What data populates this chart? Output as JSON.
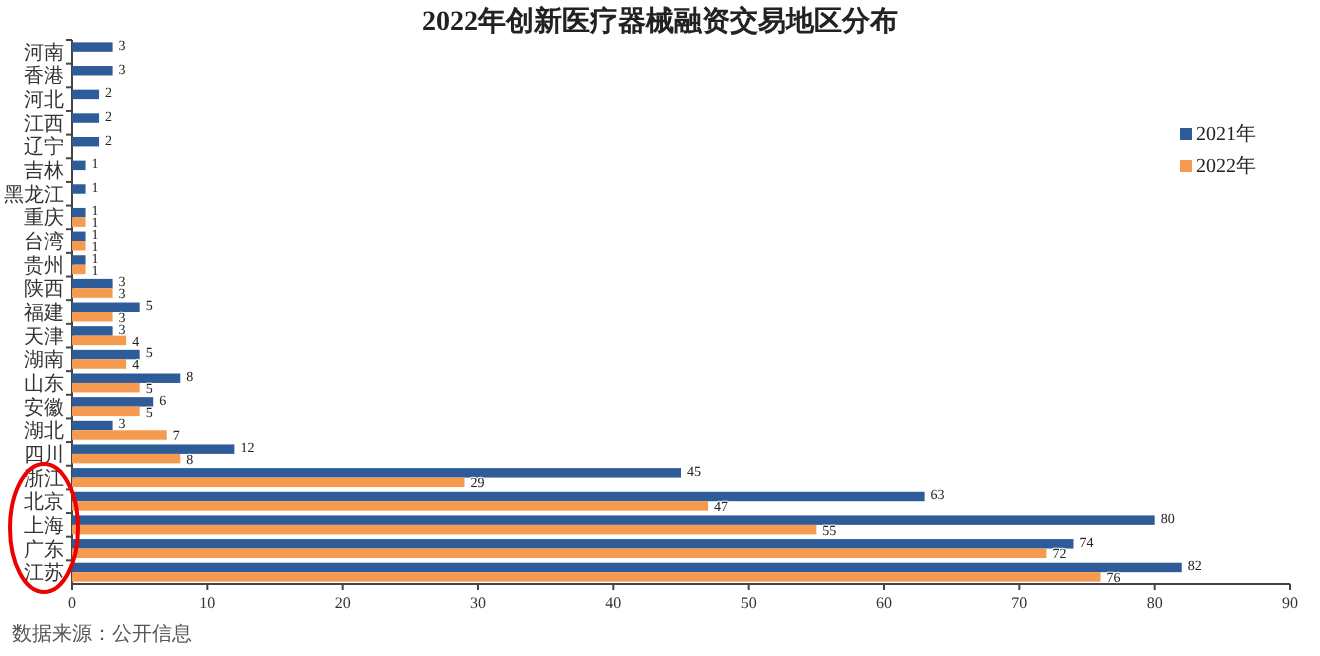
{
  "chart_data": {
    "type": "bar",
    "orientation": "horizontal",
    "title": "2022年创新医疗器械融资交易地区分布",
    "categories": [
      "河南",
      "香港",
      "河北",
      "江西",
      "辽宁",
      "吉林",
      "黑龙江",
      "重庆",
      "台湾",
      "贵州",
      "陕西",
      "福建",
      "天津",
      "湖南",
      "山东",
      "安徽",
      "湖北",
      "四川",
      "浙江",
      "北京",
      "上海",
      "广东",
      "江苏"
    ],
    "series": [
      {
        "name": "2021年",
        "color": "#2e5c99",
        "values": [
          3,
          3,
          2,
          2,
          2,
          1,
          1,
          1,
          1,
          1,
          3,
          5,
          3,
          5,
          8,
          6,
          3,
          12,
          45,
          63,
          80,
          74,
          82
        ]
      },
      {
        "name": "2022年",
        "color": "#f59a4f",
        "values": [
          null,
          null,
          null,
          null,
          null,
          null,
          null,
          1,
          1,
          1,
          3,
          3,
          4,
          4,
          5,
          5,
          7,
          8,
          29,
          47,
          55,
          72,
          76
        ]
      }
    ],
    "xlim": [
      0,
      90
    ],
    "xticks": [
      0,
      10,
      20,
      30,
      40,
      50,
      60,
      70,
      80,
      90
    ],
    "data_labels": true,
    "legend": "right",
    "grid": false,
    "annotations": [
      "数据来源：公开信息"
    ]
  }
}
